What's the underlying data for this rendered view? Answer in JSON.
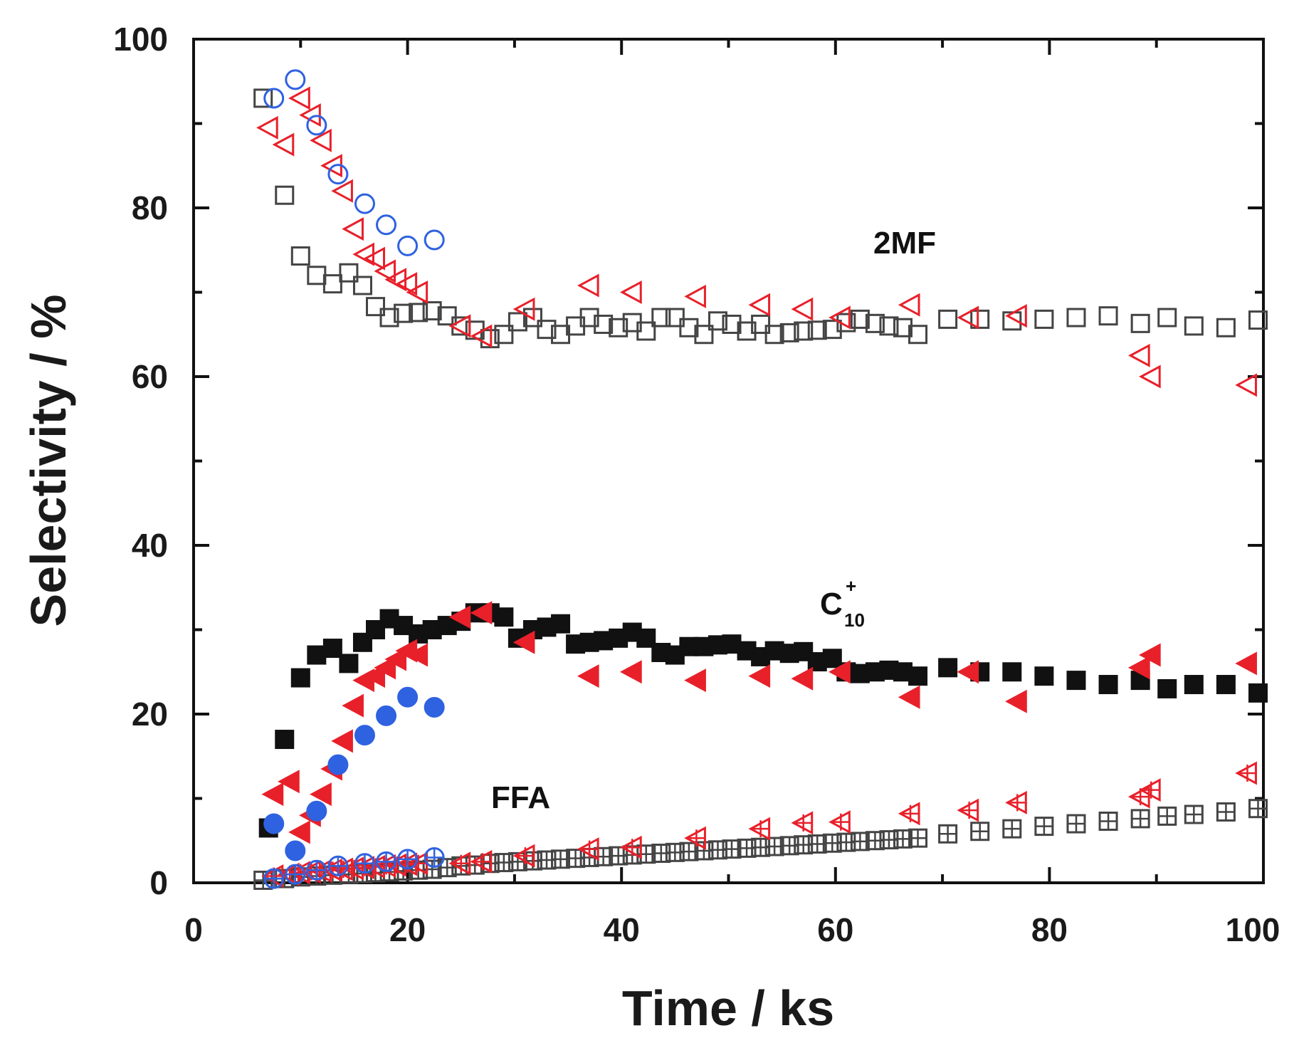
{
  "chart_data": {
    "type": "scatter",
    "title": "",
    "xlabel": "Time / ks",
    "ylabel": "Selectivity / %",
    "xlim": [
      0,
      100
    ],
    "ylim": [
      0,
      100
    ],
    "xticks": [
      "0",
      "20",
      "40",
      "60",
      "80",
      "100"
    ],
    "yticks": [
      "0",
      "20",
      "40",
      "60",
      "80",
      "100"
    ],
    "grid": false,
    "annotations": {
      "mf": "2MF",
      "c10_main": "C",
      "c10_sup": "+",
      "c10_sub": "10",
      "ffa": "FFA"
    },
    "colors": {
      "black": "#111111",
      "red": "#e8202a",
      "blue": "#2f62e0",
      "open_black": "#444444"
    },
    "series": [
      {
        "name": "2MF black open squares",
        "marker": "square-open",
        "color": "#444444",
        "x": [
          6.5,
          8.5,
          10,
          11.5,
          13,
          14.5,
          15.8,
          17,
          18.3,
          19.6,
          21,
          22.3,
          23.7,
          25,
          26.3,
          27.7,
          29,
          30.3,
          31.7,
          33,
          34.3,
          35.7,
          37,
          38.3,
          39.7,
          41,
          42.3,
          43.7,
          45,
          46.3,
          47.7,
          49,
          50.3,
          51.7,
          53,
          54.3,
          55.7,
          57,
          58.3,
          59.7,
          61,
          62.3,
          63.7,
          65,
          66.3,
          67.7,
          70.5,
          73.5,
          76.5,
          79.5,
          82.5,
          85.5,
          88.5,
          91,
          93.5,
          96.5,
          99.5
        ],
        "y": [
          93,
          81.5,
          74.3,
          72,
          71,
          72.3,
          70.8,
          68.3,
          67,
          67.5,
          67.6,
          67.8,
          67.2,
          66,
          65.5,
          64.5,
          65,
          66.5,
          67,
          65.6,
          65,
          66,
          67,
          66.2,
          65.8,
          66.4,
          65.4,
          67,
          67,
          65.8,
          65,
          66.6,
          66.2,
          65.4,
          66.2,
          65,
          65.2,
          65.4,
          65.5,
          65.6,
          66.4,
          66.8,
          66.3,
          66,
          65.8,
          65,
          66.8,
          66.8,
          66.6,
          66.8,
          67,
          67.2,
          66.3,
          67,
          66,
          65.8,
          66.7
        ]
      },
      {
        "name": "2MF red open left triangles",
        "marker": "triangle-left-open",
        "color": "#e8202a",
        "x": [
          7,
          8.5,
          10,
          11,
          12,
          13,
          14,
          15,
          16,
          17,
          18,
          19,
          20,
          21,
          25,
          27,
          31,
          37,
          41,
          47,
          53,
          57,
          60.5,
          67,
          72.5,
          77,
          88.5,
          89.5,
          98.5
        ],
        "y": [
          89.5,
          87.5,
          93,
          91,
          88,
          85,
          82,
          77.5,
          74.5,
          74,
          72.5,
          71.5,
          71,
          70,
          66,
          64.8,
          68,
          70.8,
          70,
          69.5,
          68.5,
          68,
          67,
          68.5,
          67,
          67.2,
          62.5,
          60,
          59
        ]
      },
      {
        "name": "2MF blue open circles",
        "marker": "circle-open",
        "color": "#2f62e0",
        "x": [
          7.5,
          9.5,
          11.5,
          13.5,
          16,
          18,
          20,
          22.5
        ],
        "y": [
          93,
          95.2,
          89.8,
          84,
          80.5,
          78,
          75.5,
          76.2
        ]
      },
      {
        "name": "C10+ black filled squares",
        "marker": "square-filled",
        "color": "#111111",
        "x": [
          7,
          8.5,
          10,
          11.5,
          13,
          14.5,
          15.8,
          17,
          18.3,
          19.6,
          21,
          22.3,
          23.7,
          25,
          26.3,
          27.7,
          29,
          30.3,
          31.7,
          33,
          34.3,
          35.7,
          37,
          38.3,
          39.7,
          41,
          42.3,
          43.7,
          45,
          46.3,
          47.7,
          49,
          50.3,
          51.7,
          53,
          54.3,
          55.7,
          57,
          58.3,
          59.7,
          61,
          62.3,
          63.7,
          65,
          66.3,
          67.7,
          70.5,
          73.5,
          76.5,
          79.5,
          82.5,
          85.5,
          88.5,
          91,
          93.5,
          96.5,
          99.5
        ],
        "y": [
          6.5,
          17,
          24.3,
          27,
          27.8,
          26,
          28.5,
          30,
          31.3,
          30.5,
          29.5,
          30,
          30.5,
          31,
          32,
          32,
          31.5,
          29,
          30,
          30.3,
          30.7,
          28.3,
          28.5,
          28.7,
          29,
          29.7,
          29,
          27.3,
          27,
          28,
          28,
          28.2,
          28.3,
          27.5,
          26.8,
          27.5,
          27.2,
          27.4,
          26.2,
          26.6,
          25,
          24.8,
          25,
          25.2,
          25,
          24.5,
          25.5,
          25,
          25,
          24.5,
          24,
          23.5,
          24,
          23,
          23.5,
          23.5,
          22.5
        ]
      },
      {
        "name": "C10+ red filled left triangles",
        "marker": "triangle-left-filled",
        "color": "#e8202a",
        "x": [
          7.5,
          9,
          10,
          11,
          12,
          13,
          14,
          15,
          16,
          17,
          18,
          19,
          20,
          21,
          25,
          27,
          31,
          37,
          41,
          47,
          53,
          57,
          60.5,
          67,
          72.5,
          77,
          88.5,
          89.5,
          98.5
        ],
        "y": [
          10.5,
          12,
          6,
          8,
          10.5,
          13.5,
          16.8,
          21,
          24,
          24.5,
          25.5,
          26.5,
          27.5,
          27,
          31.5,
          32,
          28.5,
          24.5,
          25,
          24,
          24.5,
          24.2,
          25,
          22,
          25,
          21.5,
          25.5,
          27,
          26
        ]
      },
      {
        "name": "C10+ blue filled circles",
        "marker": "circle-filled",
        "color": "#2f62e0",
        "x": [
          7.5,
          9.5,
          11.5,
          13.5,
          16,
          18,
          20,
          22.5
        ],
        "y": [
          7,
          3.8,
          8.5,
          14,
          17.5,
          19.8,
          22,
          20.8
        ]
      },
      {
        "name": "FFA black crossed squares",
        "marker": "square-cross",
        "color": "#444444",
        "x": [
          6.5,
          8.5,
          10,
          11.5,
          13,
          14.5,
          15.8,
          17,
          18.3,
          19.6,
          21,
          22.3,
          23.7,
          25,
          26.3,
          27.7,
          29,
          30.3,
          31.7,
          33,
          34.3,
          35.7,
          37,
          38.3,
          39.7,
          41,
          42.3,
          43.7,
          45,
          46.3,
          47.7,
          49,
          50.3,
          51.7,
          53,
          54.3,
          55.7,
          57,
          58.3,
          59.7,
          61,
          62.3,
          63.7,
          65,
          66.3,
          67.7,
          70.5,
          73.5,
          76.5,
          79.5,
          82.5,
          85.5,
          88.5,
          91,
          93.5,
          96.5,
          99.5
        ],
        "y": [
          0.3,
          0.5,
          0.7,
          0.8,
          0.9,
          1.0,
          1.1,
          1.2,
          1.3,
          1.4,
          1.5,
          1.6,
          1.8,
          2.0,
          2.1,
          2.3,
          2.4,
          2.5,
          2.6,
          2.7,
          2.8,
          2.9,
          3.0,
          3.1,
          3.2,
          3.3,
          3.4,
          3.5,
          3.6,
          3.7,
          3.8,
          3.9,
          4.0,
          4.1,
          4.2,
          4.3,
          4.4,
          4.5,
          4.6,
          4.7,
          4.8,
          4.9,
          5.0,
          5.1,
          5.2,
          5.3,
          5.8,
          6.1,
          6.4,
          6.7,
          7.0,
          7.3,
          7.6,
          7.9,
          8.1,
          8.4,
          8.8
        ]
      },
      {
        "name": "FFA red crossed left triangles",
        "marker": "triangle-left-cross",
        "color": "#e8202a",
        "x": [
          7.5,
          9,
          10,
          11,
          12,
          13,
          14,
          15,
          16,
          17,
          18,
          19,
          20,
          21,
          25,
          27,
          31,
          37,
          41,
          47,
          53,
          57,
          60.5,
          67,
          72.5,
          77,
          88.5,
          89.5,
          98.5
        ],
        "y": [
          0.8,
          1.0,
          1.2,
          1.3,
          1.4,
          1.5,
          1.6,
          1.7,
          1.8,
          1.9,
          2.0,
          2.1,
          2.2,
          2.3,
          2.3,
          2.5,
          3.2,
          4.0,
          4.2,
          5.3,
          6.4,
          7.1,
          7.2,
          8.2,
          8.6,
          9.5,
          10.2,
          11.0,
          13.0
        ]
      },
      {
        "name": "FFA blue crossed circles",
        "marker": "circle-cross",
        "color": "#2f62e0",
        "x": [
          7.5,
          9.5,
          11.5,
          13.5,
          16,
          18,
          20,
          22.5
        ],
        "y": [
          0.5,
          1.0,
          1.5,
          2.0,
          2.3,
          2.5,
          2.8,
          3.0
        ]
      }
    ]
  }
}
